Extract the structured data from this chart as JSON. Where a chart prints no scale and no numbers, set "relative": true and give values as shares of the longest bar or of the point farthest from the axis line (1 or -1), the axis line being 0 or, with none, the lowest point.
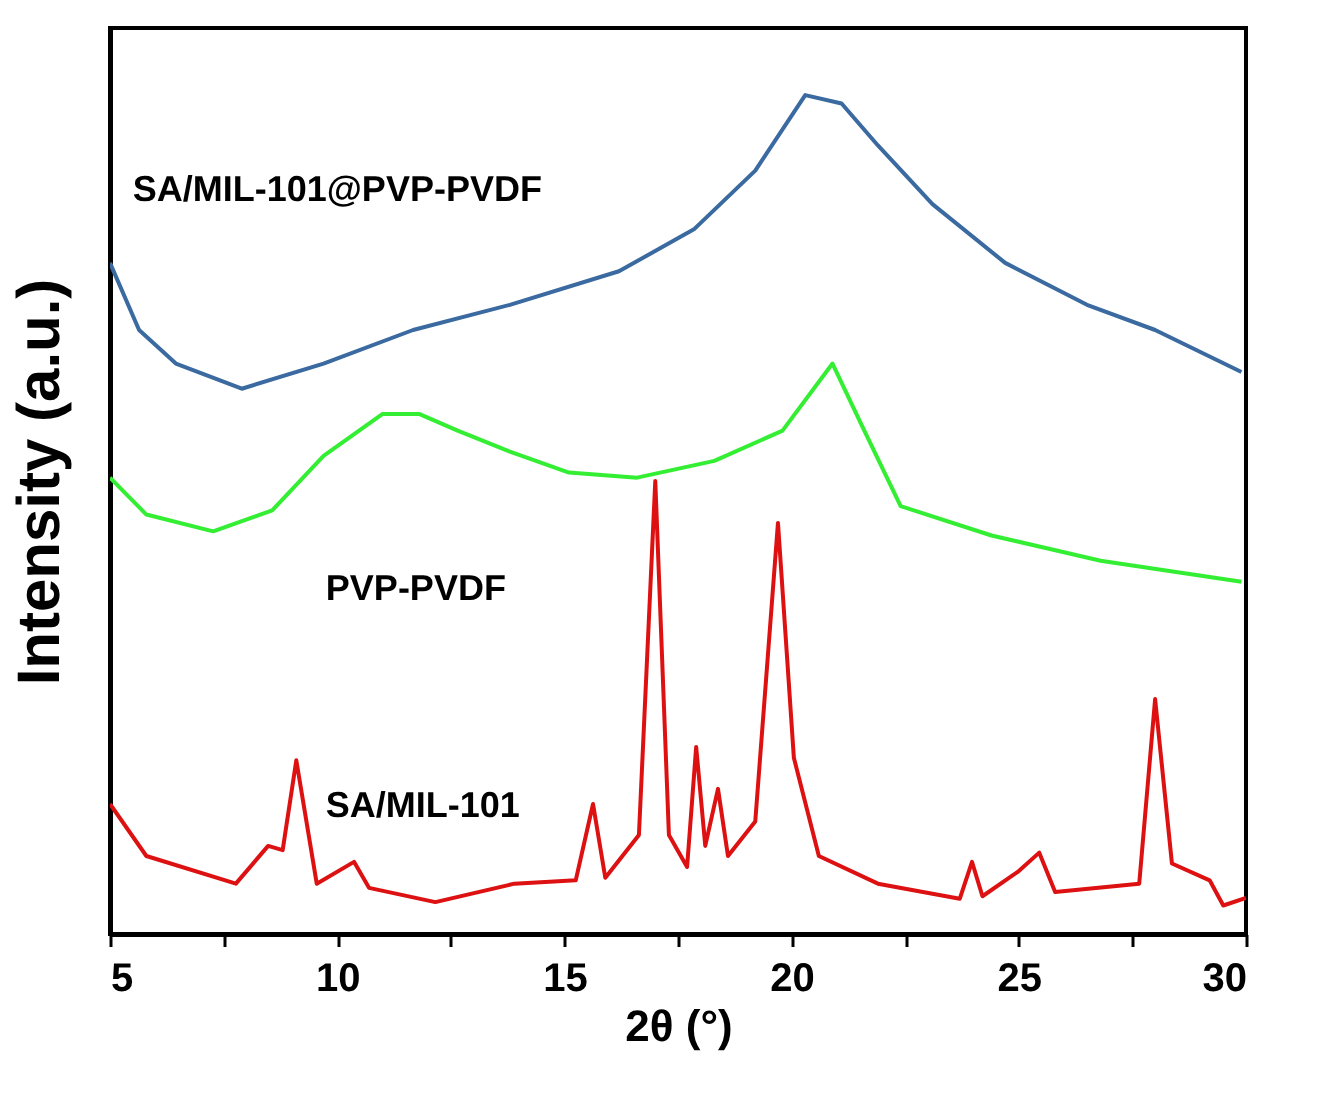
{
  "chart_data": {
    "type": "line",
    "relative": true,
    "xlabel": "2θ (°)",
    "ylabel": "Intensity (a.u.)",
    "xlim": [
      5,
      30
    ],
    "xticks": [
      5,
      {
        "value": 7.5,
        "label": null
      },
      10,
      {
        "value": 12.5,
        "label": null
      },
      15,
      {
        "value": 17.5,
        "label": null
      },
      20,
      {
        "value": 22.5,
        "label": null
      },
      25,
      {
        "value": 27.5,
        "label": null
      },
      30
    ],
    "grid": false,
    "legend": false,
    "marker": "none",
    "line_style": "solid",
    "series": [
      {
        "name": "SA/MIL-101@PVP-PVDF",
        "color": "#3a6aa0",
        "x": [
          5,
          5.64,
          6.45,
          7.9,
          9.7,
          11.67,
          13.8,
          16.2,
          17.85,
          19.2,
          20.3,
          21.1,
          21.9,
          23.1,
          24.7,
          26.5,
          28.0,
          29.9
        ],
        "values": [
          0.8,
          0.72,
          0.68,
          0.65,
          0.68,
          0.72,
          0.75,
          0.79,
          0.84,
          0.91,
          1.0,
          0.99,
          0.94,
          0.87,
          0.8,
          0.75,
          0.72,
          0.67
        ]
      },
      {
        "name": "PVP-PVDF",
        "color": "#33ee33",
        "x": [
          5,
          5.8,
          7.27,
          8.57,
          9.7,
          11.0,
          11.8,
          12.65,
          13.8,
          15.1,
          16.6,
          18.3,
          19.8,
          20.9,
          21.6,
          22.4,
          24.4,
          26.8,
          29.9
        ],
        "values": [
          0.544,
          0.5,
          0.48,
          0.505,
          0.57,
          0.62,
          0.62,
          0.6,
          0.575,
          0.55,
          0.544,
          0.564,
          0.6,
          0.68,
          0.6,
          0.51,
          0.475,
          0.445,
          0.42
        ]
      },
      {
        "name": "SA/MIL-101",
        "color": "#dd1111",
        "x": [
          5,
          5.8,
          7.77,
          8.48,
          8.8,
          9.1,
          9.55,
          10.37,
          10.7,
          12.16,
          13.9,
          15.25,
          15.63,
          15.9,
          16.64,
          17.0,
          17.3,
          17.7,
          17.9,
          18.1,
          18.38,
          18.6,
          19.2,
          19.7,
          20.05,
          20.6,
          21.9,
          23.7,
          23.97,
          24.2,
          25.0,
          25.45,
          25.8,
          27.65,
          28.0,
          28.37,
          29.2,
          29.5,
          30
        ],
        "values": [
          0.155,
          0.093,
          0.06,
          0.105,
          0.1,
          0.207,
          0.06,
          0.086,
          0.055,
          0.038,
          0.06,
          0.064,
          0.155,
          0.067,
          0.118,
          0.54,
          0.118,
          0.08,
          0.223,
          0.105,
          0.173,
          0.093,
          0.134,
          0.49,
          0.21,
          0.093,
          0.06,
          0.042,
          0.086,
          0.045,
          0.075,
          0.097,
          0.05,
          0.06,
          0.28,
          0.084,
          0.064,
          0.034,
          0.043
        ]
      }
    ]
  }
}
